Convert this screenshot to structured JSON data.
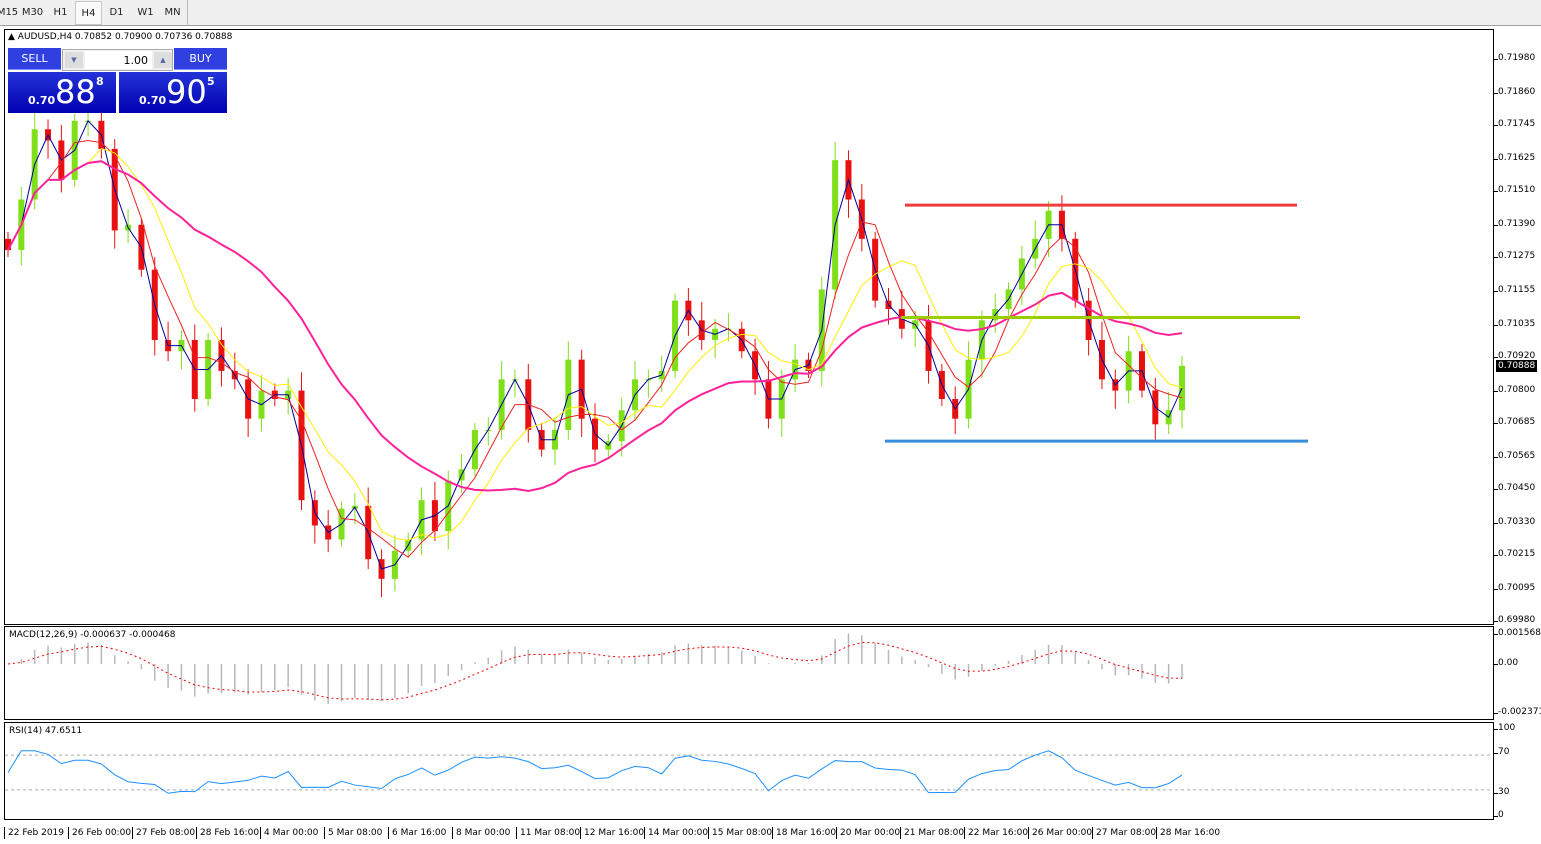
{
  "toolbar": {
    "timeframes": [
      "M15",
      "M30",
      "H1",
      "H4",
      "D1",
      "W1",
      "MN"
    ],
    "active": "H4"
  },
  "chart": {
    "symbol_line": "AUDUSD,H4  0.70852 0.70900 0.70736 0.70888",
    "current_price": "0.70888",
    "trade_panel": {
      "sell_label": "SELL",
      "buy_label": "BUY",
      "lot": "1.00",
      "sell_prefix": "0.70",
      "sell_big": "88",
      "sell_sup": "8",
      "buy_prefix": "0.70",
      "buy_big": "90",
      "buy_sup": "5"
    },
    "y_ticks": [
      "0.71980",
      "0.71860",
      "0.71745",
      "0.71625",
      "0.71510",
      "0.71390",
      "0.71275",
      "0.71155",
      "0.71035",
      "0.70920",
      "0.70800",
      "0.70685",
      "0.70565",
      "0.70450",
      "0.70330",
      "0.70215",
      "0.70095",
      "0.69980"
    ],
    "x_ticks": [
      "22 Feb 2019",
      "26 Feb 00:00",
      "27 Feb 08:00",
      "28 Feb 16:00",
      "4 Mar 00:00",
      "5 Mar 08:00",
      "6 Mar 16:00",
      "8 Mar 00:00",
      "11 Mar 08:00",
      "12 Mar 16:00",
      "14 Mar 00:00",
      "15 Mar 08:00",
      "18 Mar 16:00",
      "20 Mar 00:00",
      "21 Mar 08:00",
      "22 Mar 16:00",
      "26 Mar 00:00",
      "27 Mar 08:00",
      "28 Mar 16:00"
    ],
    "colors": {
      "up": "#7fe01a",
      "down": "#e81010",
      "ma_fast": "#000099",
      "ma_mid": "#ee2222",
      "ma_slow": "#ffee00",
      "ma_long": "#ff2299",
      "resistance": "#f03c3c",
      "mid_level": "#9acd00",
      "support": "#3a8fdc"
    }
  },
  "macd": {
    "label": "MACD(12,26,9) -0.000637 -0.000468",
    "ticks": [
      "0.001568",
      "0.00",
      "-0.002371"
    ]
  },
  "rsi": {
    "label": "RSI(14) 47.6511",
    "ticks": [
      "100",
      "70",
      "30",
      "0"
    ]
  },
  "chart_data": {
    "type": "candlestick",
    "ylim": [
      0.6998,
      0.7198
    ],
    "closes": [
      0.713,
      0.7148,
      0.7173,
      0.7169,
      0.7155,
      0.7176,
      0.7176,
      0.7166,
      0.7137,
      0.7139,
      0.7123,
      0.7098,
      0.7094,
      0.7098,
      0.7077,
      0.7098,
      0.7087,
      0.7084,
      0.707,
      0.708,
      0.7077,
      0.708,
      0.7041,
      0.7032,
      0.7027,
      0.7038,
      0.7039,
      0.702,
      0.7013,
      0.7023,
      0.7027,
      0.7041,
      0.703,
      0.7048,
      0.7052,
      0.7066,
      0.7066,
      0.7084,
      0.7084,
      0.7066,
      0.7059,
      0.7066,
      0.7091,
      0.707,
      0.7059,
      0.7062,
      0.7073,
      0.7084,
      0.7084,
      0.7087,
      0.7112,
      0.7105,
      0.7098,
      0.7102,
      0.7102,
      0.7094,
      0.7084,
      0.707,
      0.7084,
      0.7091,
      0.7087,
      0.7116,
      0.7162,
      0.7148,
      0.7134,
      0.7112,
      0.7109,
      0.7102,
      0.7105,
      0.7087,
      0.7077,
      0.707,
      0.7091,
      0.7105,
      0.7109,
      0.7116,
      0.7127,
      0.7134,
      0.7144,
      0.7134,
      0.7112,
      0.7098,
      0.7084,
      0.708,
      0.7094,
      0.708,
      0.7068,
      0.7073,
      0.70888
    ],
    "levels": [
      {
        "price": 0.7146,
        "role": "resistance"
      },
      {
        "price": 0.7106,
        "role": "mid_level"
      },
      {
        "price": 0.7062,
        "role": "support"
      }
    ]
  }
}
